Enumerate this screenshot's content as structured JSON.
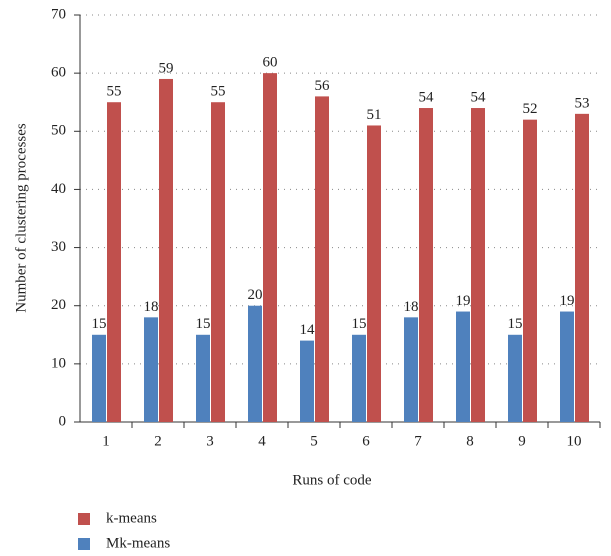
{
  "chart_data": {
    "type": "bar",
    "x_label": "Runs of code",
    "y_label": "Number of clustering processes",
    "categories": [
      "1",
      "2",
      "3",
      "4",
      "5",
      "6",
      "7",
      "8",
      "9",
      "10"
    ],
    "series": [
      {
        "name": "Mk-means",
        "color": "#4f81bd",
        "values": [
          15,
          18,
          15,
          20,
          14,
          15,
          18,
          19,
          15,
          19
        ]
      },
      {
        "name": "k-means",
        "color": "#c0504d",
        "values": [
          55,
          59,
          55,
          60,
          56,
          51,
          54,
          54,
          52,
          53
        ]
      }
    ],
    "ylim": [
      0,
      70
    ],
    "yticks": [
      0,
      10,
      20,
      30,
      40,
      50,
      60,
      70
    ],
    "grid": true
  }
}
